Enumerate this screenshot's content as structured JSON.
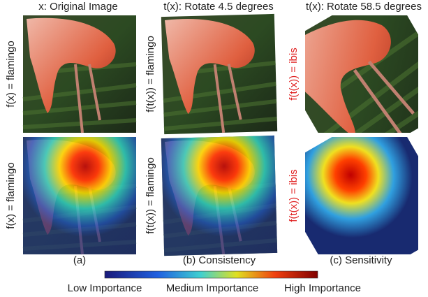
{
  "columns": [
    {
      "title": "x: Original Image",
      "caption": "(a)",
      "row_labels": [
        "f(x) = flamingo",
        "f(x) = flamingo"
      ]
    },
    {
      "title": "t(x): Rotate 4.5 degrees",
      "caption": "(b) Consistency",
      "row_labels": [
        "f(t(x)) = flamingo",
        "f(t(x)) = flamingo"
      ]
    },
    {
      "title": "t(x): Rotate 58.5 degrees",
      "caption": "(c) Sensitivity",
      "row_labels": [
        "f(t(x)) = ibis",
        "f(t(x)) = ibis"
      ]
    }
  ],
  "colorbar": {
    "labels": [
      "Low Importance",
      "Medium Importance",
      "High Importance"
    ]
  }
}
